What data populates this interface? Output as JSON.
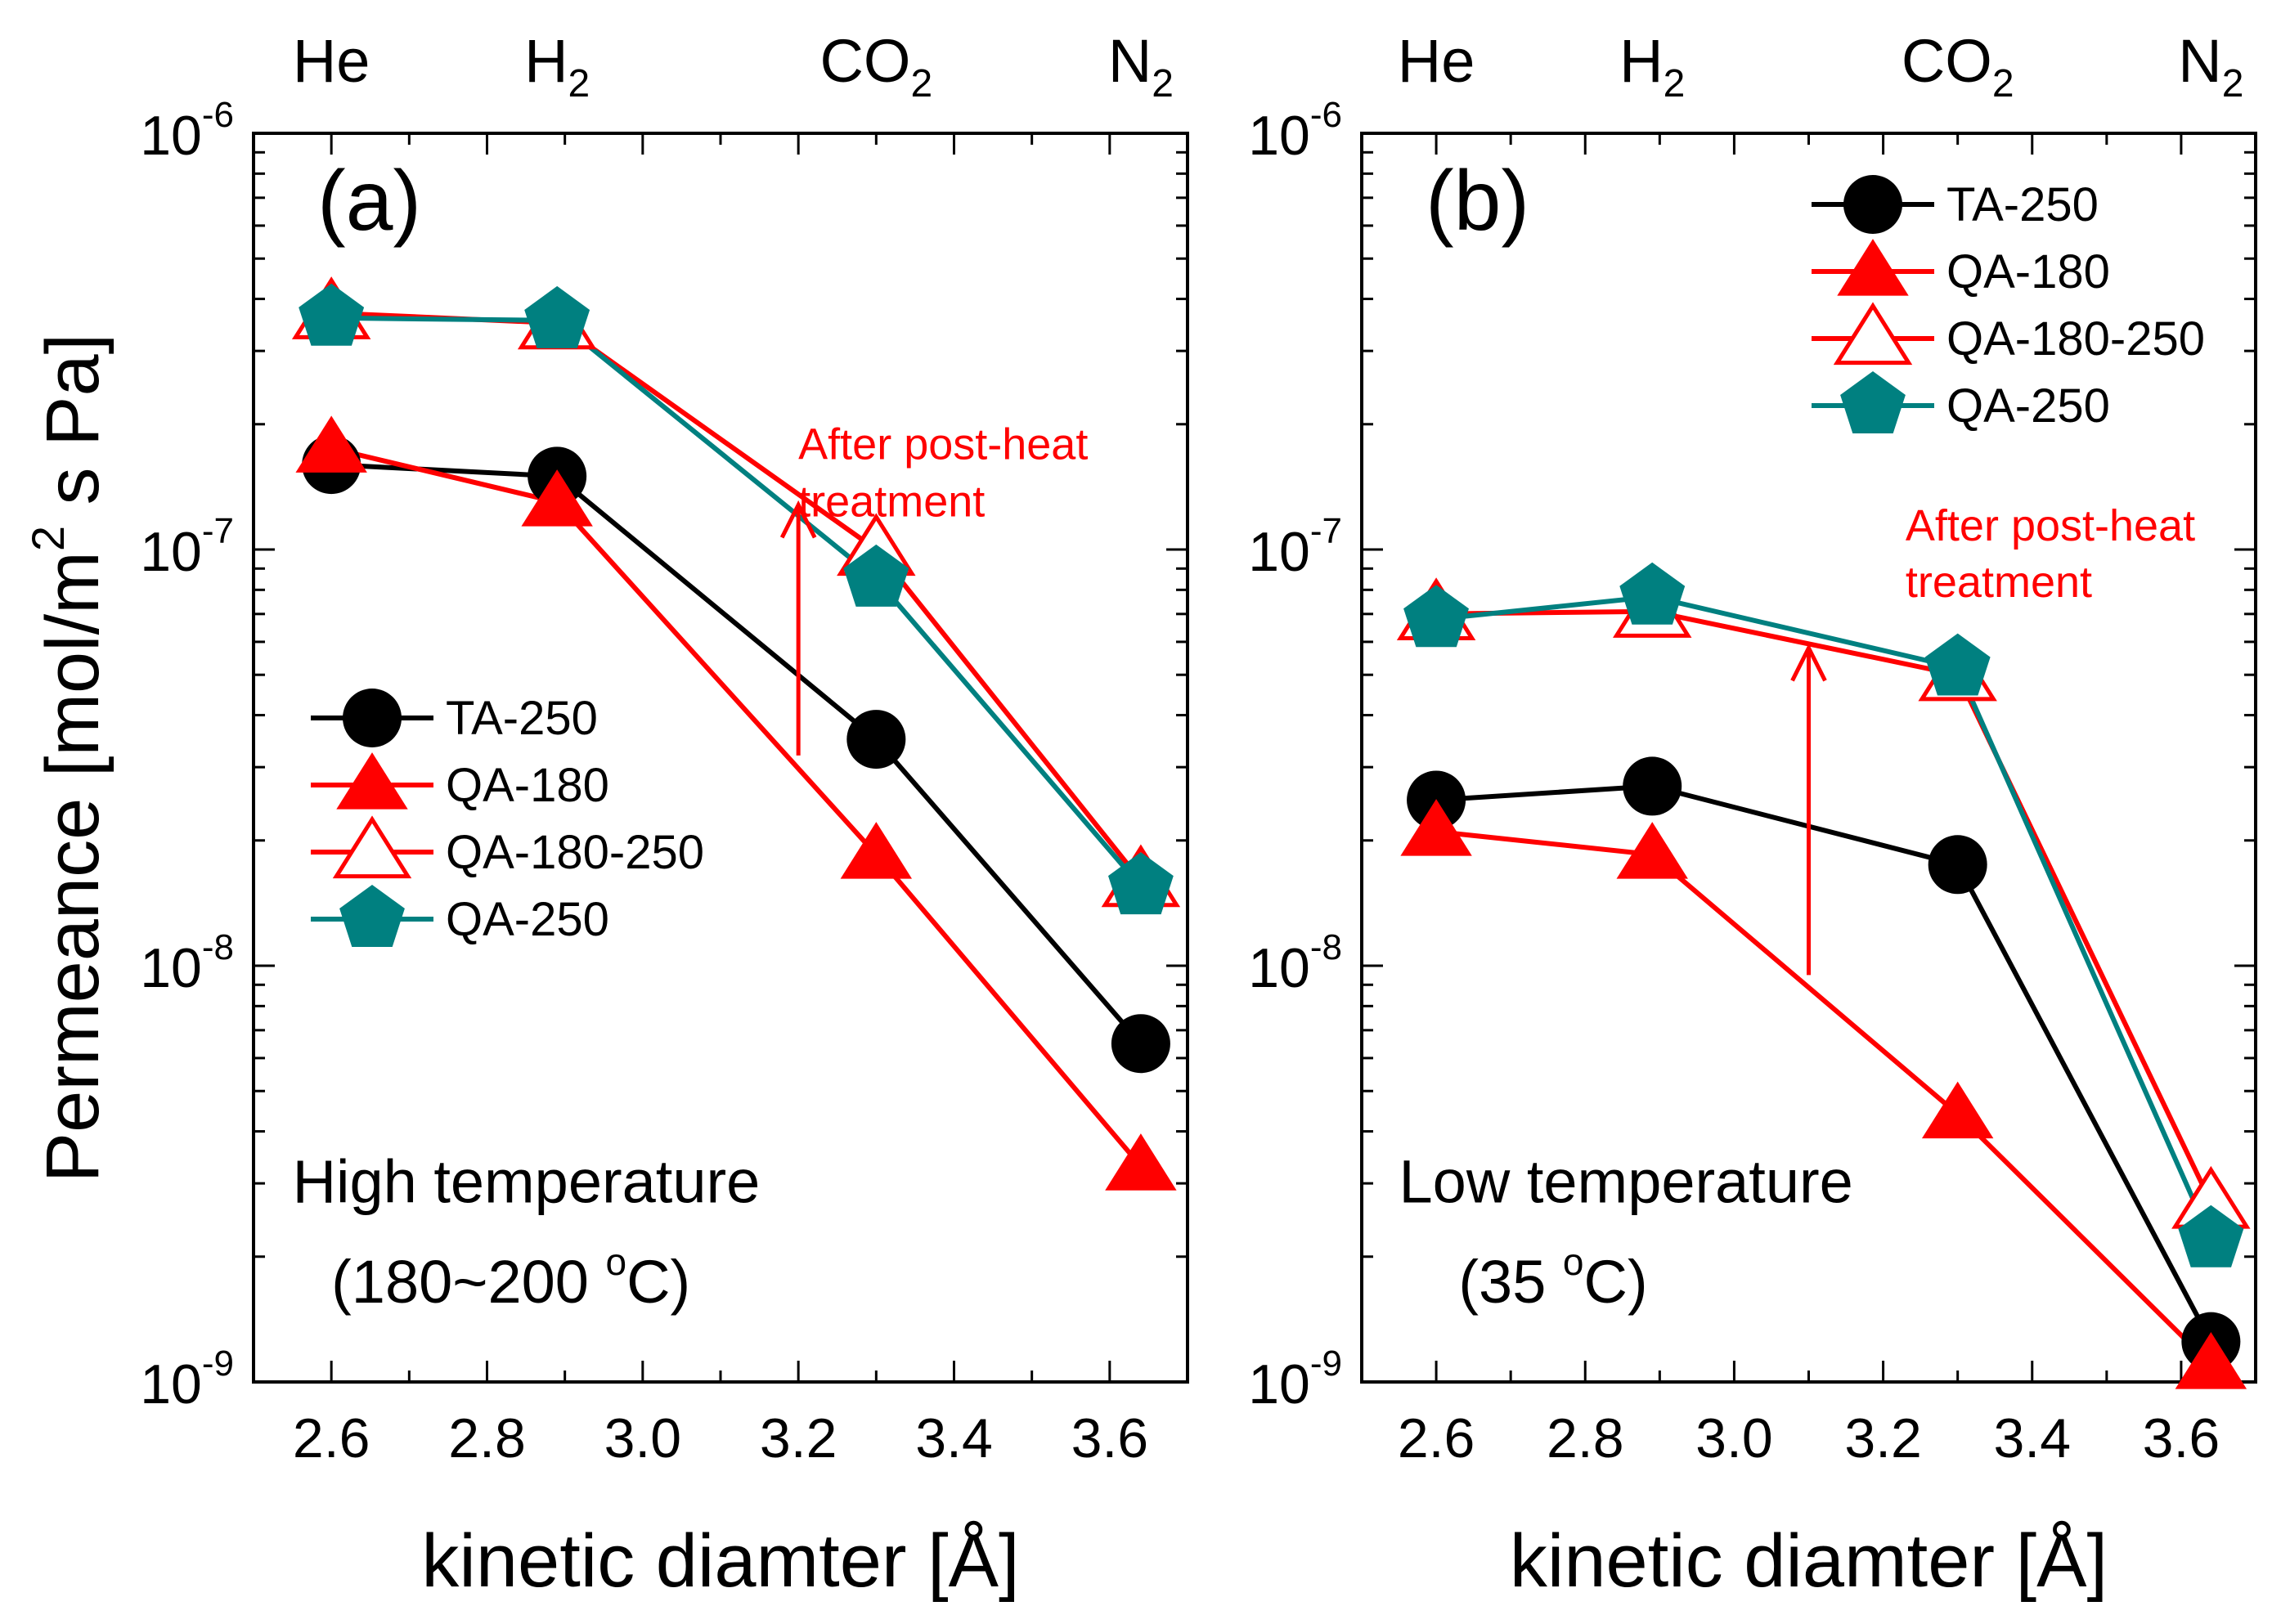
{
  "figure": {
    "y_axis_label": "Permeance [mol/m",
    "y_axis_label_sup": "2",
    "y_axis_label_tail": " s Pa]"
  },
  "colors": {
    "TA-250": "#000000",
    "QA-180": "#ff0000",
    "QA-180-250": "#ff0000",
    "QA-250": "#008080",
    "annotation": "#ff0000",
    "axis": "#000000"
  },
  "chart_data": [
    {
      "type": "line",
      "panel_label": "(a)",
      "xlabel": "kinetic diamter [Å]",
      "ylabel": "Permeance [mol/m2 s Pa]",
      "yscale": "log",
      "xlim": [
        2.5,
        3.7
      ],
      "ylim": [
        1e-09,
        1e-06
      ],
      "xticks": [
        2.6,
        2.8,
        3.0,
        3.2,
        3.4,
        3.6
      ],
      "xtick_labels": [
        "2.6",
        "2.8",
        "3.0",
        "3.2",
        "3.4",
        "3.6"
      ],
      "ytick_labels": [
        {
          "base": "10",
          "exp": "-9",
          "value": 1e-09
        },
        {
          "base": "10",
          "exp": "-8",
          "value": 1e-08
        },
        {
          "base": "10",
          "exp": "-7",
          "value": 1e-07
        },
        {
          "base": "10",
          "exp": "-6",
          "value": 1e-06
        }
      ],
      "top_labels": [
        {
          "text": "He",
          "sub": "",
          "x": 2.6
        },
        {
          "text": "H",
          "sub": "2",
          "x": 2.89
        },
        {
          "text": "CO",
          "sub": "2",
          "x": 3.3
        },
        {
          "text": "N",
          "sub": "2",
          "x": 3.64
        }
      ],
      "x": [
        2.6,
        2.89,
        3.3,
        3.64
      ],
      "series": [
        {
          "name": "TA-250",
          "marker": "circle",
          "values": [
            1.6e-07,
            1.5e-07,
            3.5e-08,
            6.5e-09
          ]
        },
        {
          "name": "QA-180",
          "marker": "triangle",
          "values": [
            1.75e-07,
            1.3e-07,
            1.85e-08,
            3.3e-09
          ]
        },
        {
          "name": "QA-180-250",
          "marker": "triangle-open",
          "values": [
            3.7e-07,
            3.5e-07,
            1e-07,
            1.6e-08
          ]
        },
        {
          "name": "QA-250",
          "marker": "pentagon",
          "values": [
            3.6e-07,
            3.55e-07,
            8.5e-08,
            1.55e-08
          ]
        }
      ],
      "legend": {
        "position": "center-left",
        "entries": [
          "TA-250",
          "QA-180",
          "QA-180-250",
          "QA-250"
        ]
      },
      "annotations": [
        {
          "text": "After post-heat",
          "x": 3.2,
          "y": 1.65e-07
        },
        {
          "text": "treatment",
          "x": 3.2,
          "y": 1.2e-07
        },
        {
          "text": "High temperature",
          "x": 2.55,
          "y": 2.7e-09
        },
        {
          "text": "(180~200 ",
          "sup": "o",
          "tail": "C)",
          "x": 2.6,
          "y": 1.55e-09
        }
      ],
      "arrow": {
        "x": 3.2,
        "y_from": 3.2e-08,
        "y_to": 1.28e-07
      }
    },
    {
      "type": "line",
      "panel_label": "(b)",
      "xlabel": "kinetic diamter [Å]",
      "ylabel": "",
      "yscale": "log",
      "xlim": [
        2.5,
        3.7
      ],
      "ylim": [
        1e-09,
        1e-06
      ],
      "xticks": [
        2.6,
        2.8,
        3.0,
        3.2,
        3.4,
        3.6
      ],
      "xtick_labels": [
        "2.6",
        "2.8",
        "3.0",
        "3.2",
        "3.4",
        "3.6"
      ],
      "ytick_labels": [
        {
          "base": "10",
          "exp": "-9",
          "value": 1e-09
        },
        {
          "base": "10",
          "exp": "-8",
          "value": 1e-08
        },
        {
          "base": "10",
          "exp": "-7",
          "value": 1e-07
        },
        {
          "base": "10",
          "exp": "-6",
          "value": 1e-06
        }
      ],
      "top_labels": [
        {
          "text": "He",
          "sub": "",
          "x": 2.6
        },
        {
          "text": "H",
          "sub": "2",
          "x": 2.89
        },
        {
          "text": "CO",
          "sub": "2",
          "x": 3.3
        },
        {
          "text": "N",
          "sub": "2",
          "x": 3.64
        }
      ],
      "x": [
        2.6,
        2.89,
        3.3,
        3.64
      ],
      "series": [
        {
          "name": "TA-250",
          "marker": "circle",
          "values": [
            2.5e-08,
            2.7e-08,
            1.75e-08,
            1.25e-09
          ]
        },
        {
          "name": "QA-180",
          "marker": "triangle",
          "values": [
            2.1e-08,
            1.85e-08,
            4.4e-09,
            1.1e-09
          ]
        },
        {
          "name": "QA-180-250",
          "marker": "triangle-open",
          "values": [
            7e-08,
            7.1e-08,
            5e-08,
            2.7e-09
          ]
        },
        {
          "name": "QA-250",
          "marker": "pentagon",
          "values": [
            6.8e-08,
            7.7e-08,
            5.2e-08,
            2.2e-09
          ]
        }
      ],
      "legend": {
        "position": "top-right",
        "entries": [
          "TA-250",
          "QA-180",
          "QA-180-250",
          "QA-250"
        ]
      },
      "annotations": [
        {
          "text": "After post-heat",
          "x": 3.23,
          "y": 1.05e-07
        },
        {
          "text": "treatment",
          "x": 3.23,
          "y": 7.7e-08
        },
        {
          "text": "Low temperature",
          "x": 2.55,
          "y": 2.7e-09
        },
        {
          "text": "(35 ",
          "sup": "o",
          "tail": "C)",
          "x": 2.63,
          "y": 1.55e-09
        }
      ],
      "arrow": {
        "x": 3.1,
        "y_from": 9.5e-09,
        "y_to": 5.8e-08
      }
    }
  ]
}
